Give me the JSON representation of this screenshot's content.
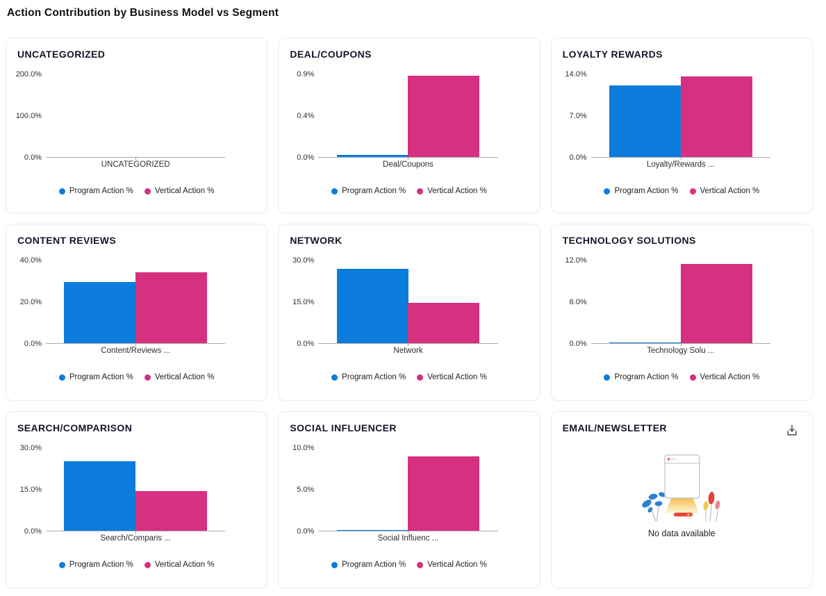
{
  "page": {
    "title": "Action Contribution by Business Model vs Segment"
  },
  "colors": {
    "program_blue": "#0b7cdb",
    "vertical_pink": "#d63080",
    "axis_gray": "#ababab"
  },
  "legend": {
    "items": [
      {
        "id": "program",
        "label": "Program Action %",
        "color": "#0b7cdb"
      },
      {
        "id": "vertical",
        "label": "Vertical Action %",
        "color": "#d63080"
      }
    ]
  },
  "chart_data": [
    {
      "type": "bar",
      "title": "UNCATEGORIZED",
      "category": "UNCATEGORIZED",
      "y_ticks": [
        "200.0%",
        "100.0%",
        "0.0%"
      ],
      "y_max": 200,
      "series": [
        {
          "name": "Program Action %",
          "value": 0
        },
        {
          "name": "Vertical Action %",
          "value": 0
        }
      ]
    },
    {
      "type": "bar",
      "title": "DEAL/COUPONS",
      "category": "Deal/Coupons",
      "y_ticks": [
        "0.9%",
        "0.4%",
        "0.0%"
      ],
      "y_max": 0.9,
      "series": [
        {
          "name": "Program Action %",
          "value": 0.02
        },
        {
          "name": "Vertical Action %",
          "value": 0.88
        }
      ]
    },
    {
      "type": "bar",
      "title": "LOYALTY REWARDS",
      "category": "Loyalty/Rewards ...",
      "y_ticks": [
        "14.0%",
        "7.0%",
        "0.0%"
      ],
      "y_max": 14,
      "series": [
        {
          "name": "Program Action %",
          "value": 12.0
        },
        {
          "name": "Vertical Action %",
          "value": 13.5
        }
      ]
    },
    {
      "type": "bar",
      "title": "CONTENT REVIEWS",
      "category": "Content/Reviews ...",
      "y_ticks": [
        "40.0%",
        "20.0%",
        "0.0%"
      ],
      "y_max": 40,
      "series": [
        {
          "name": "Program Action %",
          "value": 29.3
        },
        {
          "name": "Vertical Action %",
          "value": 34.0
        }
      ]
    },
    {
      "type": "bar",
      "title": "NETWORK",
      "category": "Network",
      "y_ticks": [
        "30.0%",
        "15.0%",
        "0.0%"
      ],
      "y_max": 30,
      "series": [
        {
          "name": "Program Action %",
          "value": 26.8
        },
        {
          "name": "Vertical Action %",
          "value": 14.6
        }
      ]
    },
    {
      "type": "bar",
      "title": "TECHNOLOGY SOLUTIONS",
      "category": "Technology Solu ...",
      "y_ticks": [
        "12.0%",
        "6.0%",
        "0.0%"
      ],
      "y_max": 12,
      "series": [
        {
          "name": "Program Action %",
          "value": 0.05
        },
        {
          "name": "Vertical Action %",
          "value": 11.4
        }
      ]
    },
    {
      "type": "bar",
      "title": "SEARCH/COMPARISON",
      "category": "Search/Comparis ...",
      "y_ticks": [
        "30.0%",
        "15.0%",
        "0.0%"
      ],
      "y_max": 30,
      "series": [
        {
          "name": "Program Action %",
          "value": 24.9
        },
        {
          "name": "Vertical Action %",
          "value": 14.3
        }
      ]
    },
    {
      "type": "bar",
      "title": "SOCIAL INFLUENCER",
      "category": "Social Influenc ...",
      "y_ticks": [
        "10.0%",
        "5.0%",
        "0.0%"
      ],
      "y_max": 10,
      "series": [
        {
          "name": "Program Action %",
          "value": 0.02
        },
        {
          "name": "Vertical Action %",
          "value": 8.9
        }
      ]
    },
    {
      "type": "none",
      "title": "EMAIL/NEWSLETTER",
      "no_data": true,
      "message": "No data available"
    }
  ]
}
